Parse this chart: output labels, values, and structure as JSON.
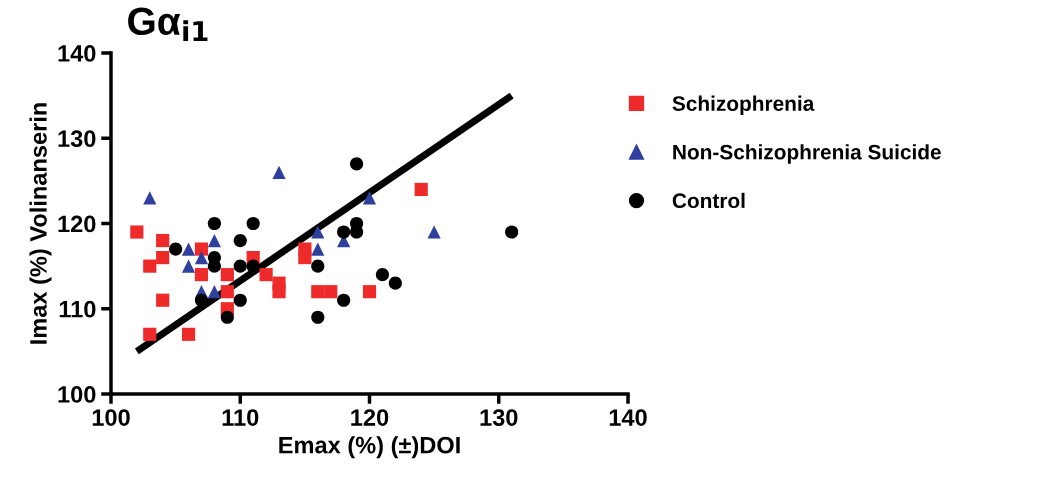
{
  "chart_data": {
    "type": "scatter",
    "title": "Gα$_{i1}$",
    "xlabel": "Emax (%) (±)DOI",
    "ylabel": "Imax (%) Volinanserin",
    "xlim": [
      100,
      140
    ],
    "ylim": [
      100,
      140
    ],
    "xticks": [
      100,
      110,
      120,
      130,
      140
    ],
    "yticks": [
      100,
      110,
      120,
      130,
      140
    ],
    "grid": false,
    "legend": "right",
    "series": [
      {
        "name": "Schizophrenia",
        "color": "#ee2a2a",
        "marker": "square",
        "x": [
          102,
          103,
          103,
          104,
          104,
          104,
          106,
          107,
          107,
          109,
          109,
          109,
          111,
          112,
          113,
          113,
          115,
          115,
          116,
          117,
          120,
          124
        ],
        "values": [
          119,
          115,
          107,
          118,
          116,
          111,
          107,
          117,
          114,
          114,
          112,
          110,
          116,
          114,
          113,
          112,
          117,
          116,
          112,
          112,
          112,
          124
        ]
      },
      {
        "name": "Non-Schizophrenia Suicide",
        "color": "#2e3f9e",
        "marker": "triangle",
        "x": [
          103,
          113,
          106,
          108,
          107,
          106,
          107,
          108,
          120,
          116,
          116,
          118,
          125
        ],
        "values": [
          123,
          126,
          117,
          118,
          116,
          115,
          112,
          112,
          123,
          119,
          117,
          118,
          119
        ]
      },
      {
        "name": "Control",
        "color": "#000000",
        "marker": "circle",
        "x": [
          105,
          108,
          111,
          110,
          108,
          108,
          110,
          111,
          107,
          110,
          109,
          119,
          119,
          119,
          118,
          131,
          116,
          121,
          122,
          118,
          116
        ],
        "values": [
          117,
          120,
          120,
          118,
          116,
          115,
          115,
          115,
          111,
          111,
          109,
          127,
          120,
          119,
          119,
          119,
          115,
          114,
          113,
          111,
          109
        ]
      },
      {
        "type": "line",
        "color": "#000000",
        "marker": "none",
        "x": [
          102,
          131
        ],
        "values": [
          105,
          135
        ]
      }
    ]
  }
}
